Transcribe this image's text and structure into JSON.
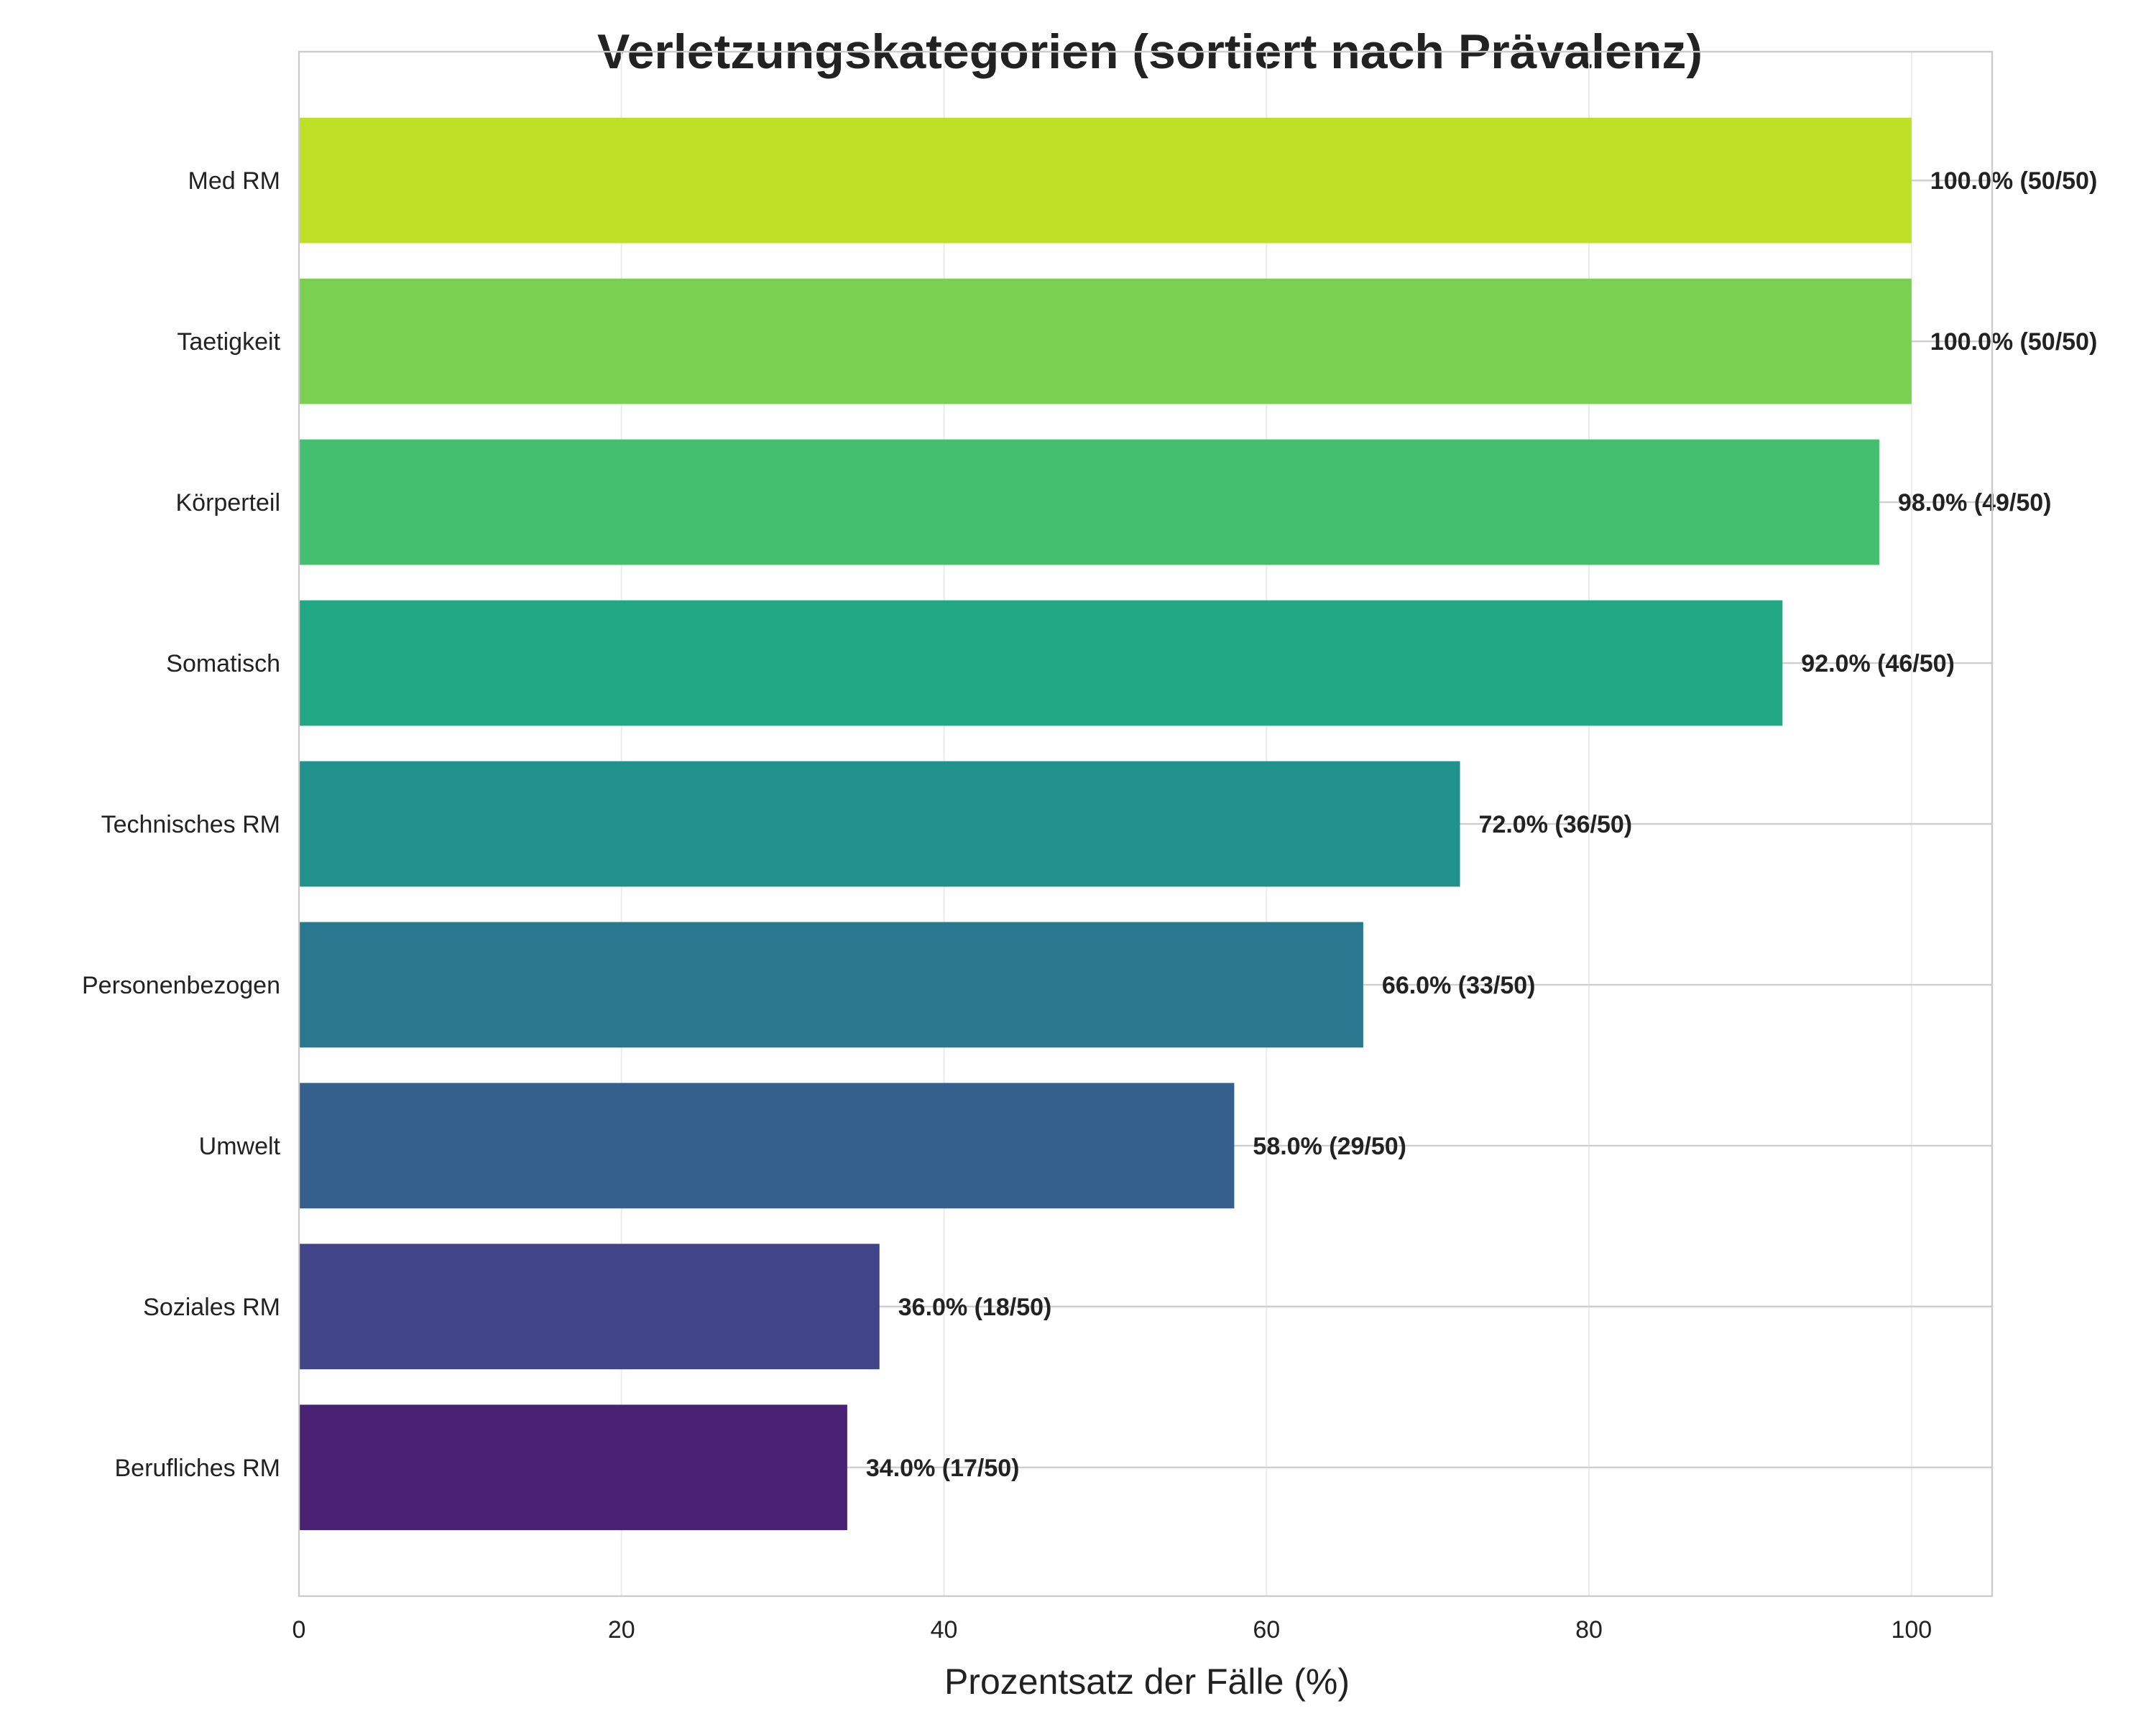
{
  "chart_data": {
    "type": "bar",
    "orientation": "horizontal",
    "title": "Verletzungskategorien (sortiert nach Prävalenz)",
    "xlabel": "Prozentsatz der Fälle (%)",
    "ylabel": "",
    "xlim": [
      0,
      105
    ],
    "xticks": [
      0,
      20,
      40,
      60,
      80,
      100
    ],
    "grid": true,
    "categories": [
      "Med RM",
      "Taetigkeit",
      "Körperteil",
      "Somatisch",
      "Technisches RM",
      "Personenbezogen",
      "Umwelt",
      "Soziales RM",
      "Berufliches RM"
    ],
    "values": [
      100.0,
      100.0,
      98.0,
      92.0,
      72.0,
      66.0,
      58.0,
      36.0,
      34.0
    ],
    "data_labels": [
      "100.0% (50/50)",
      "100.0% (50/50)",
      "98.0% (49/50)",
      "92.0% (46/50)",
      "72.0% (36/50)",
      "66.0% (33/50)",
      "58.0% (29/50)",
      "36.0% (18/50)",
      "34.0% (17/50)"
    ],
    "colors": [
      "#bde026",
      "#7ad151",
      "#44bf70",
      "#22a884",
      "#21918c",
      "#2a788e",
      "#355f8d",
      "#414487",
      "#482173"
    ]
  }
}
